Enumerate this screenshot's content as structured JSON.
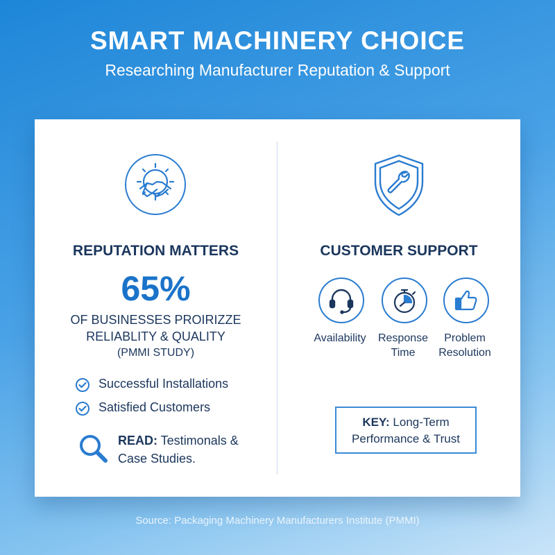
{
  "header": {
    "title": "SMART MACHINERY CHOICE",
    "subtitle": "Researching Manufacturer Reputation & Support"
  },
  "reputation": {
    "icon": "handshake-gear-icon",
    "title": "REPUTATION MATTERS",
    "stat_value": "65%",
    "stat_line1": "OF BUSINESSES PROIRIZZE",
    "stat_line2": "RELIABLITY & QUALITY",
    "stat_source": "(PMMI STUDY)",
    "checklist": [
      "Successful Installations",
      "Satisfied Customers"
    ],
    "read_label": "READ:",
    "read_text": " Testimonals & Case Studies."
  },
  "support": {
    "icon": "shield-wrench-icon",
    "title": "CUSTOMER SUPPORT",
    "items": [
      {
        "icon": "headset-icon",
        "label": "Availability"
      },
      {
        "icon": "stopwatch-icon",
        "label": "Response Time"
      },
      {
        "icon": "thumbs-up-icon",
        "label": "Problem Resolution"
      }
    ],
    "key_label": "KEY:",
    "key_text": " Long-Term Performance & Trust"
  },
  "footer": {
    "source": "Source: Packaging Machinery Manufacturers Institute (PMMI)"
  },
  "colors": {
    "navy": "#1b365d",
    "accent": "#1a73c9",
    "background_top": "#1e86d8",
    "background_bottom": "#c9e4f8"
  }
}
